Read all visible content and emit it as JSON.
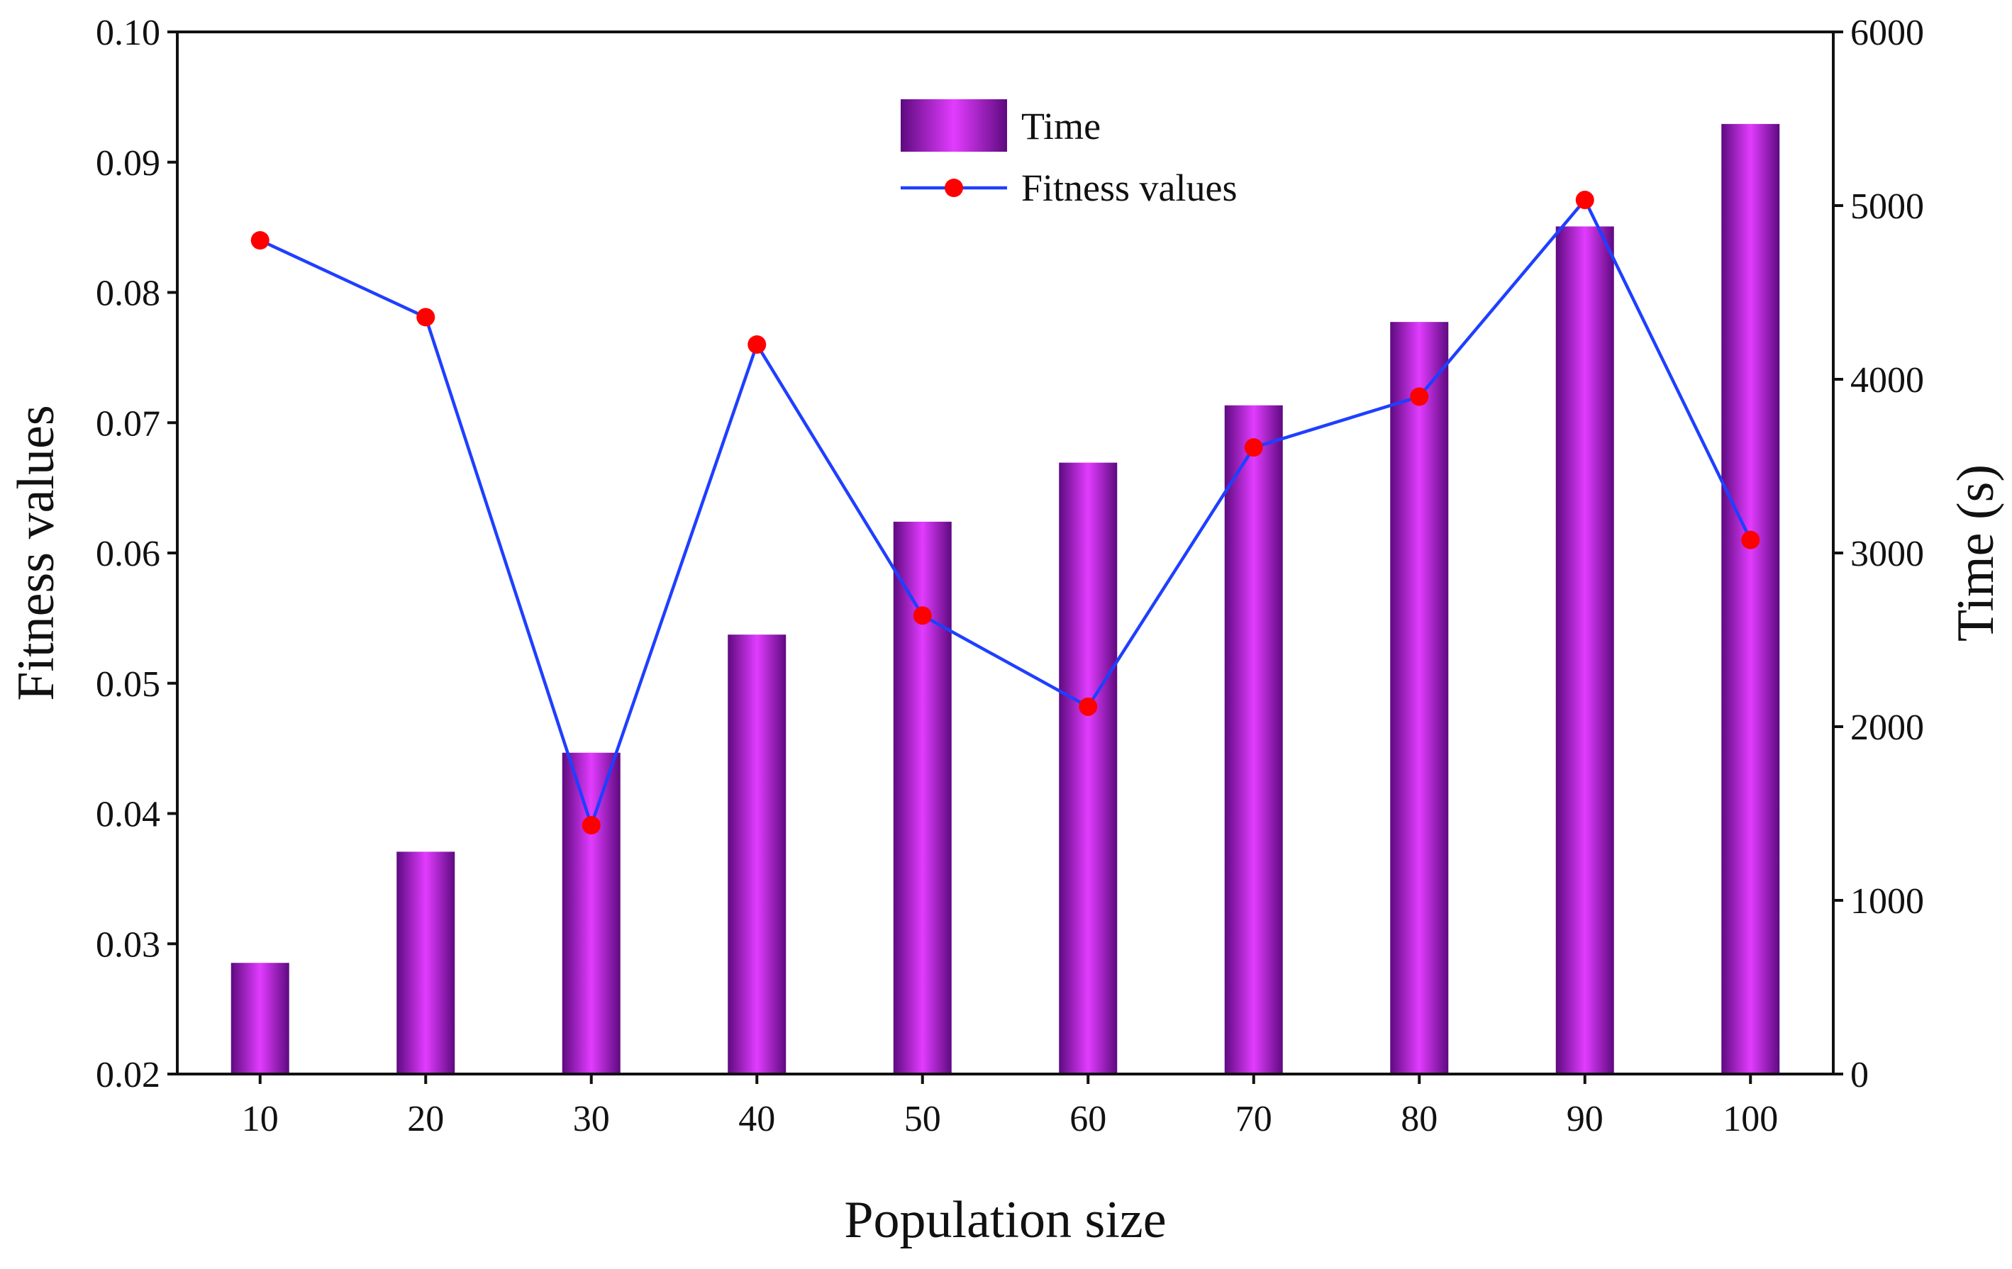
{
  "chart_data": {
    "type": "bar+line",
    "title": "",
    "xlabel": "Population size",
    "ylabel_left": "Fitness values",
    "ylabel_right": "Time (s)",
    "categories": [
      "10",
      "20",
      "30",
      "40",
      "50",
      "60",
      "70",
      "80",
      "90",
      "100"
    ],
    "y_left_lim": [
      0.02,
      0.1
    ],
    "y_left_ticks": [
      "0.02",
      "0.03",
      "0.04",
      "0.05",
      "0.06",
      "0.07",
      "0.08",
      "0.09",
      "0.10"
    ],
    "y_right_lim": [
      0,
      6000
    ],
    "y_right_ticks": [
      "0",
      "1000",
      "2000",
      "3000",
      "4000",
      "5000",
      "6000"
    ],
    "series": [
      {
        "name": "Time",
        "kind": "bar",
        "axis": "right",
        "values": [
          640,
          1280,
          1850,
          2530,
          3180,
          3520,
          3850,
          4330,
          4880,
          5470
        ]
      },
      {
        "name": "Fitness values",
        "kind": "line",
        "axis": "left",
        "values": [
          0.084,
          0.0781,
          0.0391,
          0.076,
          0.0552,
          0.0482,
          0.0681,
          0.072,
          0.0871,
          0.061
        ]
      }
    ],
    "legend": {
      "position": "top-center",
      "entries": [
        "Time",
        "Fitness values"
      ]
    },
    "colors": {
      "bar_edge": "#6a0a8a",
      "bar_center": "#e040fb",
      "line": "#1f3fff",
      "marker": "#ff0000",
      "axis": "#111111"
    }
  }
}
